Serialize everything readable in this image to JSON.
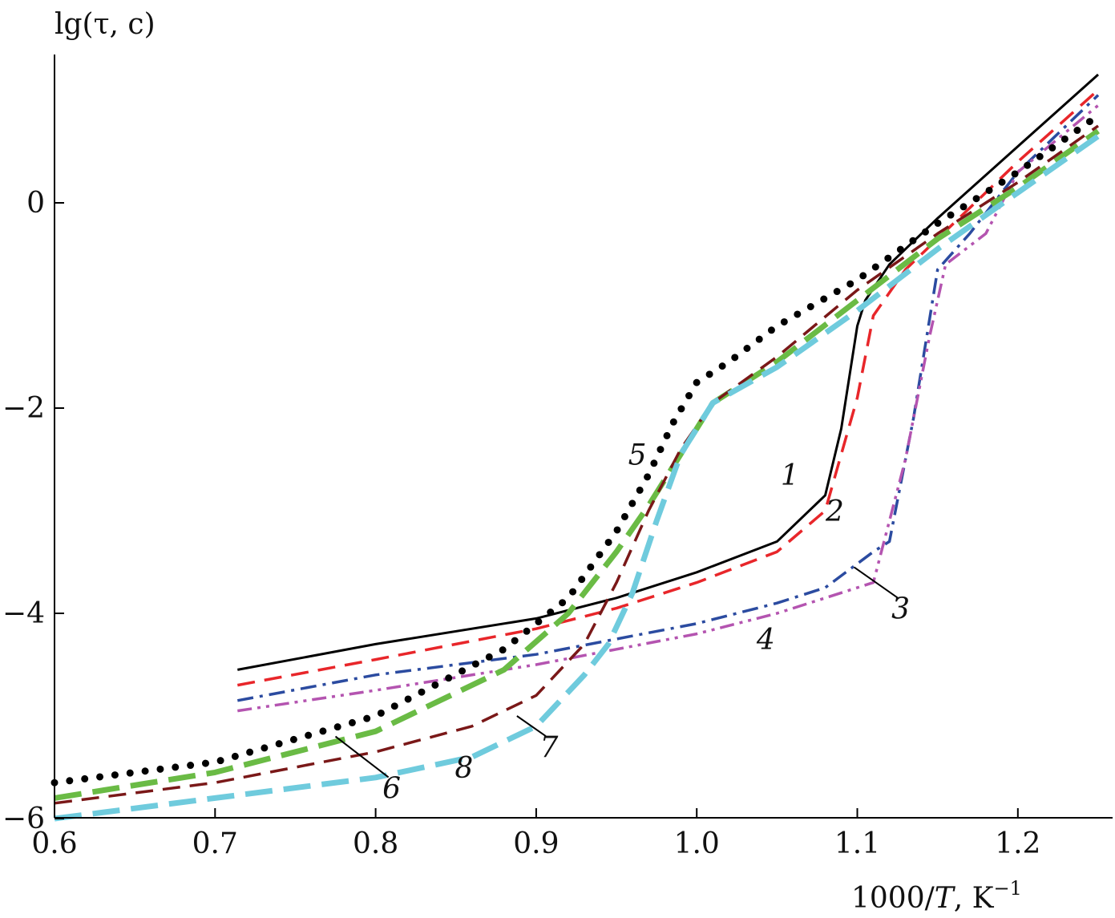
{
  "chart_data": {
    "type": "line",
    "title": "",
    "ylabel": "lg(τ, c)",
    "xlabel": "1000/T, K",
    "xlabel_main": "1000/",
    "xlabel_var": "T",
    "xlabel_unit": ", K",
    "xlabel_sup": "−1",
    "xlim": [
      0.6,
      1.26
    ],
    "ylim": [
      -6,
      1.4
    ],
    "xticks": [
      0.6,
      0.7,
      0.8,
      0.9,
      1.0,
      1.1,
      1.2
    ],
    "xtick_labels": [
      "0.6",
      "0.7",
      "0.8",
      "0.9",
      "1.0",
      "1.1",
      "1.2"
    ],
    "yticks": [
      -6,
      -4,
      -2,
      0
    ],
    "ytick_labels": [
      "−6",
      "−4",
      "−2",
      "0"
    ],
    "grid": false,
    "series": [
      {
        "label": "1",
        "color": "#000000",
        "style": "solid",
        "width": 3,
        "x": [
          0.714,
          0.8,
          0.9,
          0.95,
          1.0,
          1.05,
          1.08,
          1.09,
          1.1,
          1.105,
          1.12,
          1.15,
          1.2,
          1.25
        ],
        "y": [
          -4.55,
          -4.3,
          -4.05,
          -3.85,
          -3.6,
          -3.3,
          -2.85,
          -2.2,
          -1.2,
          -0.95,
          -0.6,
          -0.15,
          0.55,
          1.25
        ]
      },
      {
        "label": "2",
        "color": "#e8262a",
        "style": "dashed",
        "width": 3.5,
        "x": [
          0.714,
          0.8,
          0.9,
          0.95,
          1.0,
          1.05,
          1.08,
          1.1,
          1.11,
          1.13,
          1.16,
          1.2,
          1.25
        ],
        "y": [
          -4.7,
          -4.45,
          -4.15,
          -3.95,
          -3.7,
          -3.4,
          -3.0,
          -1.9,
          -1.1,
          -0.65,
          -0.2,
          0.4,
          1.1
        ]
      },
      {
        "label": "3",
        "color": "#2b4ba0",
        "style": "dashdot",
        "width": 3.5,
        "x": [
          0.714,
          0.8,
          0.9,
          0.95,
          1.0,
          1.05,
          1.08,
          1.11,
          1.12,
          1.135,
          1.15,
          1.17,
          1.2,
          1.25
        ],
        "y": [
          -4.85,
          -4.6,
          -4.4,
          -4.25,
          -4.1,
          -3.9,
          -3.75,
          -3.4,
          -3.3,
          -2.1,
          -0.65,
          -0.3,
          0.3,
          1.05
        ]
      },
      {
        "label": "4",
        "color": "#b454b0",
        "style": "dashdotdot",
        "width": 3.5,
        "x": [
          0.714,
          0.8,
          0.9,
          0.95,
          1.0,
          1.05,
          1.08,
          1.11,
          1.13,
          1.145,
          1.155,
          1.18,
          1.2,
          1.25
        ],
        "y": [
          -4.95,
          -4.75,
          -4.5,
          -4.35,
          -4.2,
          -4.0,
          -3.85,
          -3.7,
          -2.5,
          -1.3,
          -0.6,
          -0.3,
          0.3,
          0.95
        ]
      },
      {
        "label": "5",
        "color": "#000000",
        "style": "dotted",
        "width": 9,
        "x": [
          0.6,
          0.7,
          0.8,
          0.88,
          0.92,
          0.95,
          0.97,
          0.985,
          1.0,
          1.02,
          1.05,
          1.1,
          1.15,
          1.2,
          1.25
        ],
        "y": [
          -5.65,
          -5.45,
          -5.0,
          -4.35,
          -3.85,
          -3.2,
          -2.65,
          -2.15,
          -1.75,
          -1.55,
          -1.2,
          -0.75,
          -0.2,
          0.3,
          0.85
        ]
      },
      {
        "label": "6",
        "color": "#6abb45",
        "style": "longdash",
        "width": 7,
        "x": [
          0.6,
          0.7,
          0.8,
          0.88,
          0.92,
          0.95,
          0.97,
          0.99,
          1.01,
          1.05,
          1.1,
          1.15,
          1.2,
          1.25
        ],
        "y": [
          -5.8,
          -5.55,
          -5.15,
          -4.55,
          -4.0,
          -3.4,
          -2.95,
          -2.45,
          -1.95,
          -1.55,
          -0.95,
          -0.35,
          0.15,
          0.7
        ]
      },
      {
        "label": "7",
        "color": "#7a1818",
        "style": "dashed",
        "width": 3.5,
        "x": [
          0.6,
          0.7,
          0.8,
          0.86,
          0.9,
          0.93,
          0.95,
          0.97,
          0.99,
          1.01,
          1.05,
          1.1,
          1.15,
          1.2,
          1.25
        ],
        "y": [
          -5.85,
          -5.65,
          -5.35,
          -5.1,
          -4.8,
          -4.3,
          -3.7,
          -3.0,
          -2.4,
          -1.95,
          -1.5,
          -0.85,
          -0.3,
          0.2,
          0.75
        ]
      },
      {
        "label": "8",
        "color": "#6fcbdd",
        "style": "longdash",
        "width": 7,
        "x": [
          0.6,
          0.7,
          0.8,
          0.86,
          0.9,
          0.93,
          0.945,
          0.96,
          0.975,
          0.99,
          1.01,
          1.05,
          1.1,
          1.15,
          1.2,
          1.25
        ],
        "y": [
          -6.0,
          -5.8,
          -5.6,
          -5.4,
          -5.1,
          -4.6,
          -4.3,
          -3.8,
          -3.1,
          -2.45,
          -1.95,
          -1.6,
          -1.05,
          -0.45,
          0.1,
          0.65
        ]
      }
    ],
    "annotations": [
      {
        "text": "1",
        "x": 1.058,
        "y": -2.75
      },
      {
        "text": "2",
        "x": 1.086,
        "y": -3.1
      },
      {
        "text": "3",
        "x": 1.127,
        "y": -4.05,
        "pointer_to": [
          1.098,
          -3.55
        ]
      },
      {
        "text": "4",
        "x": 1.043,
        "y": -4.35
      },
      {
        "text": "5",
        "x": 0.963,
        "y": -2.55
      },
      {
        "text": "6",
        "x": 0.81,
        "y": -5.8,
        "pointer_to": [
          0.775,
          -5.2
        ]
      },
      {
        "text": "7",
        "x": 0.908,
        "y": -5.4,
        "pointer_to": [
          0.888,
          -5.0
        ]
      },
      {
        "text": "8",
        "x": 0.855,
        "y": -5.6
      }
    ]
  }
}
